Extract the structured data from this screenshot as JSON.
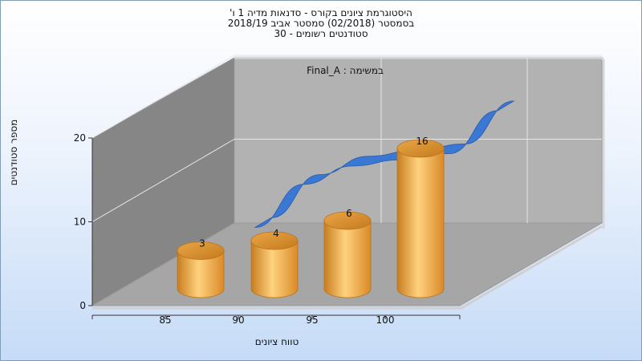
{
  "chart_data": {
    "type": "bar",
    "title_lines": [
      "היסטוגרמת ציונים בקורס - סדנאות מדיה 1 ו'",
      "בסמסטר  (02/2018)  סמסטר אביב 2018/19",
      "סטודנטים רשומים - 30"
    ],
    "series_label": "במשימה : Final_A",
    "xlabel": "טווח ציונים",
    "ylabel": "מספר סטודנטים",
    "categories": [
      "85",
      "90",
      "95",
      "100"
    ],
    "values": [
      3,
      4,
      6,
      16
    ],
    "y_ticks": [
      0,
      10,
      20
    ],
    "ylim": [
      0,
      20
    ],
    "trend_values": [
      1,
      8,
      11,
      12,
      13,
      20
    ],
    "grid": true,
    "colors": {
      "bar": "#f4a93d",
      "trend": "#3a78d4",
      "back_wall": "#b2b2b2",
      "side_wall": "#868686",
      "floor": "#a6a6a6"
    }
  }
}
